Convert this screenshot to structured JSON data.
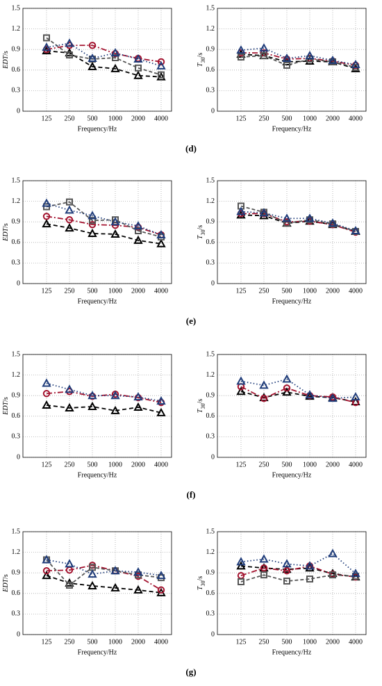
{
  "panel_labels": [
    "(d)",
    "(e)",
    "(f)",
    "(g)"
  ],
  "chart_data": [
    {
      "type": "line",
      "ylabel": [
        "EDT",
        "/s"
      ],
      "xlabel": "Frequency/Hz",
      "categories": [
        "125",
        "250",
        "500",
        "1000",
        "2000",
        "4000"
      ],
      "ylim": [
        0,
        1.5
      ],
      "yticks": [
        0,
        0.3,
        0.6,
        0.9,
        1.2,
        1.5
      ],
      "grid": true,
      "series": [
        {
          "color": "#000000",
          "dash": "6,4",
          "marker": "triangle",
          "values": [
            0.88,
            0.85,
            0.65,
            0.62,
            0.52,
            0.5
          ]
        },
        {
          "color": "#a3122e",
          "dash": "8,3,2,3",
          "marker": "circle",
          "values": [
            0.9,
            0.96,
            0.96,
            0.84,
            0.77,
            0.72
          ]
        },
        {
          "color": "#555555",
          "dash": "5,3",
          "marker": "square",
          "values": [
            1.07,
            0.82,
            0.76,
            0.78,
            0.63,
            0.53
          ]
        },
        {
          "color": "#1f3c7a",
          "dash": "1.5,3",
          "marker": "triangle",
          "values": [
            0.93,
            0.99,
            0.77,
            0.85,
            0.76,
            0.66
          ]
        }
      ]
    },
    {
      "type": "line",
      "ylabel": [
        "T",
        "30",
        "/s"
      ],
      "xlabel": "Frequency/Hz",
      "categories": [
        "125",
        "250",
        "500",
        "1000",
        "2000",
        "4000"
      ],
      "ylim": [
        0,
        1.5
      ],
      "yticks": [
        0,
        0.3,
        0.6,
        0.9,
        1.2,
        1.5
      ],
      "grid": true,
      "series": [
        {
          "color": "#000000",
          "dash": "6,4",
          "marker": "triangle",
          "values": [
            0.83,
            0.81,
            0.72,
            0.73,
            0.72,
            0.62
          ]
        },
        {
          "color": "#a3122e",
          "dash": "8,3,2,3",
          "marker": "circle",
          "values": [
            0.85,
            0.85,
            0.76,
            0.77,
            0.73,
            0.67
          ]
        },
        {
          "color": "#555555",
          "dash": "5,3",
          "marker": "square",
          "values": [
            0.79,
            0.81,
            0.67,
            0.76,
            0.72,
            0.64
          ]
        },
        {
          "color": "#1f3c7a",
          "dash": "1.5,3",
          "marker": "triangle",
          "values": [
            0.89,
            0.92,
            0.77,
            0.81,
            0.74,
            0.68
          ]
        }
      ]
    },
    {
      "type": "line",
      "ylabel": [
        "EDT",
        "/s"
      ],
      "xlabel": "Frequency/Hz",
      "categories": [
        "125",
        "250",
        "500",
        "1000",
        "2000",
        "4000"
      ],
      "ylim": [
        0,
        1.5
      ],
      "yticks": [
        0,
        0.3,
        0.6,
        0.9,
        1.2,
        1.5
      ],
      "grid": true,
      "series": [
        {
          "color": "#000000",
          "dash": "6,4",
          "marker": "triangle",
          "values": [
            0.87,
            0.81,
            0.73,
            0.72,
            0.63,
            0.58
          ]
        },
        {
          "color": "#a3122e",
          "dash": "8,3,2,3",
          "marker": "circle",
          "values": [
            0.98,
            0.93,
            0.86,
            0.85,
            0.82,
            0.71
          ]
        },
        {
          "color": "#555555",
          "dash": "5,3",
          "marker": "square",
          "values": [
            1.12,
            1.19,
            0.92,
            0.93,
            0.77,
            0.68
          ]
        },
        {
          "color": "#1f3c7a",
          "dash": "1.5,3",
          "marker": "triangle",
          "values": [
            1.17,
            1.07,
            0.99,
            0.9,
            0.84,
            0.71
          ]
        }
      ]
    },
    {
      "type": "line",
      "ylabel": [
        "T",
        "30",
        "/s"
      ],
      "xlabel": "Frequency/Hz",
      "categories": [
        "125",
        "250",
        "500",
        "1000",
        "2000",
        "4000"
      ],
      "ylim": [
        0,
        1.5
      ],
      "yticks": [
        0,
        0.3,
        0.6,
        0.9,
        1.2,
        1.5
      ],
      "grid": true,
      "series": [
        {
          "color": "#000000",
          "dash": "6,4",
          "marker": "triangle",
          "values": [
            1.0,
            0.99,
            0.88,
            0.91,
            0.86,
            0.76
          ]
        },
        {
          "color": "#a3122e",
          "dash": "8,3,2,3",
          "marker": "circle",
          "values": [
            1.02,
            1.02,
            0.9,
            0.91,
            0.86,
            0.75
          ]
        },
        {
          "color": "#555555",
          "dash": "5,3",
          "marker": "square",
          "values": [
            1.13,
            1.04,
            0.88,
            0.93,
            0.87,
            0.76
          ]
        },
        {
          "color": "#1f3c7a",
          "dash": "1.5,3",
          "marker": "triangle",
          "values": [
            1.05,
            1.03,
            0.95,
            0.95,
            0.88,
            0.77
          ]
        }
      ]
    },
    {
      "type": "line",
      "ylabel": [
        "EDT",
        "/s"
      ],
      "xlabel": "Frequency/Hz",
      "categories": [
        "125",
        "250",
        "500",
        "1000",
        "2000",
        "4000"
      ],
      "ylim": [
        0,
        1.5
      ],
      "yticks": [
        0,
        0.3,
        0.6,
        0.9,
        1.2,
        1.5
      ],
      "grid": true,
      "series": [
        {
          "color": "#000000",
          "dash": "6,4",
          "marker": "triangle",
          "values": [
            0.76,
            0.72,
            0.74,
            0.68,
            0.73,
            0.65
          ]
        },
        {
          "color": "#a3122e",
          "dash": "8,3,2,3",
          "marker": "circle",
          "values": [
            0.93,
            0.96,
            0.89,
            0.92,
            0.87,
            0.8
          ]
        },
        {
          "color": "#1f3c7a",
          "dash": "1.5,3",
          "marker": "triangle",
          "values": [
            1.08,
            0.99,
            0.9,
            0.9,
            0.88,
            0.82
          ]
        }
      ]
    },
    {
      "type": "line",
      "ylabel": [
        "T",
        "30",
        "/s"
      ],
      "xlabel": "Frequency/Hz",
      "categories": [
        "125",
        "250",
        "500",
        "1000",
        "2000",
        "4000"
      ],
      "ylim": [
        0,
        1.5
      ],
      "yticks": [
        0,
        0.3,
        0.6,
        0.9,
        1.2,
        1.5
      ],
      "grid": true,
      "series": [
        {
          "color": "#000000",
          "dash": "6,4",
          "marker": "triangle",
          "values": [
            0.96,
            0.87,
            0.95,
            0.89,
            0.87,
            0.81
          ]
        },
        {
          "color": "#a3122e",
          "dash": "8,3,2,3",
          "marker": "circle",
          "values": [
            1.03,
            0.86,
            1.01,
            0.9,
            0.88,
            0.8
          ]
        },
        {
          "color": "#1f3c7a",
          "dash": "1.5,3",
          "marker": "triangle",
          "values": [
            1.11,
            1.05,
            1.14,
            0.91,
            0.86,
            0.88
          ]
        }
      ]
    },
    {
      "type": "line",
      "ylabel": [
        "EDT",
        "/s"
      ],
      "xlabel": "Frequency/Hz",
      "categories": [
        "125",
        "250",
        "500",
        "1000",
        "2000",
        "4000"
      ],
      "ylim": [
        0,
        1.5
      ],
      "yticks": [
        0,
        0.3,
        0.6,
        0.9,
        1.2,
        1.5
      ],
      "grid": true,
      "series": [
        {
          "color": "#000000",
          "dash": "6,4",
          "marker": "triangle",
          "values": [
            0.86,
            0.75,
            0.71,
            0.68,
            0.65,
            0.61
          ]
        },
        {
          "color": "#a3122e",
          "dash": "8,3,2,3",
          "marker": "circle",
          "values": [
            0.93,
            0.94,
            1.01,
            0.93,
            0.85,
            0.65
          ]
        },
        {
          "color": "#555555",
          "dash": "5,3",
          "marker": "square",
          "values": [
            1.09,
            0.72,
            0.98,
            0.93,
            0.87,
            0.83
          ]
        },
        {
          "color": "#1f3c7a",
          "dash": "1.5,3",
          "marker": "triangle",
          "values": [
            1.09,
            1.03,
            0.88,
            0.93,
            0.91,
            0.86
          ]
        }
      ]
    },
    {
      "type": "line",
      "ylabel": [
        "T",
        "30",
        "/s"
      ],
      "xlabel": "Frequency/Hz",
      "categories": [
        "125",
        "250",
        "500",
        "1000",
        "2000",
        "4000"
      ],
      "ylim": [
        0,
        1.5
      ],
      "yticks": [
        0,
        0.3,
        0.6,
        0.9,
        1.2,
        1.5
      ],
      "grid": true,
      "series": [
        {
          "color": "#000000",
          "dash": "6,4",
          "marker": "triangle",
          "values": [
            1.0,
            0.97,
            0.95,
            0.97,
            0.89,
            0.84
          ]
        },
        {
          "color": "#a3122e",
          "dash": "8,3,2,3",
          "marker": "circle",
          "values": [
            0.86,
            0.97,
            0.93,
            1.0,
            0.88,
            0.84
          ]
        },
        {
          "color": "#555555",
          "dash": "5,3",
          "marker": "square",
          "values": [
            0.77,
            0.87,
            0.78,
            0.81,
            0.87,
            0.85
          ]
        },
        {
          "color": "#1f3c7a",
          "dash": "1.5,3",
          "marker": "triangle",
          "values": [
            1.06,
            1.1,
            1.03,
            1.0,
            1.18,
            0.89
          ]
        }
      ]
    }
  ]
}
